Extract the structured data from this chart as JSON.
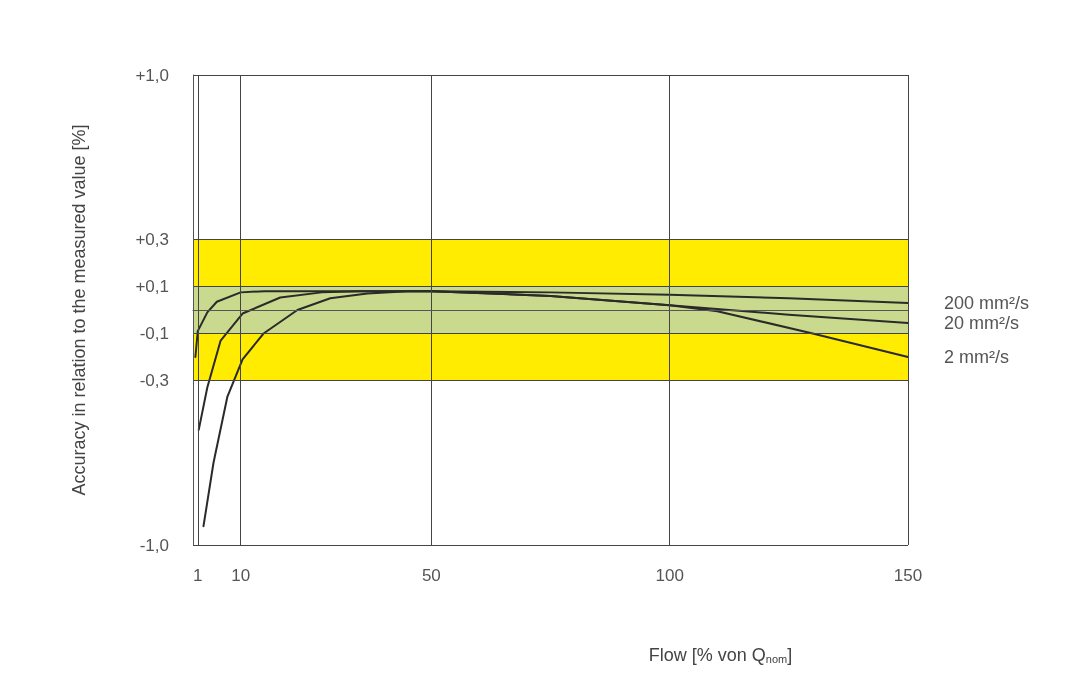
{
  "chart_data": {
    "type": "line",
    "xlabel": "Flow [% von Q$_{nom}$]",
    "ylabel": "Accuracy in relation to the measured value [%]",
    "xlim": [
      0,
      150
    ],
    "xticks": [
      1,
      10,
      50,
      100,
      150
    ],
    "ylim": [
      -1,
      1
    ],
    "yticks": [
      {
        "value": 1,
        "label": "+1,0"
      },
      {
        "value": 0.3,
        "label": "+0,3"
      },
      {
        "value": 0.1,
        "label": "+0,1"
      },
      {
        "value": 0,
        "label": null
      },
      {
        "value": -0.1,
        "label": "-0,1"
      },
      {
        "value": -0.3,
        "label": "-0,3"
      },
      {
        "value": -1,
        "label": "-1,0"
      }
    ],
    "grid": true,
    "legend": false,
    "marker": "none",
    "line_style": "solid",
    "bands": [
      {
        "axis": "y",
        "from": -0.3,
        "to": 0.3,
        "color": "#ffec00"
      },
      {
        "axis": "y",
        "from": -0.1,
        "to": 0.1,
        "color": "#c9d98e"
      }
    ],
    "series": [
      {
        "name": "200 mm²/s",
        "color": "#2a2a2a",
        "x": [
          2.2,
          4.3,
          7.2,
          10.4,
          14.8,
          21.9,
          28.8,
          36.6,
          45,
          50,
          75,
          100,
          125,
          150
        ],
        "values": [
          -0.92,
          -0.65,
          -0.37,
          -0.21,
          -0.1,
          0.0,
          0.05,
          0.07,
          0.08,
          0.08,
          0.075,
          0.065,
          0.05,
          0.03
        ]
      },
      {
        "name": "20 mm²/s",
        "color": "#2a2a2a",
        "x": [
          1.2,
          3,
          5.8,
          10.4,
          18.3,
          27,
          35,
          50,
          75,
          100,
          125,
          150
        ],
        "values": [
          -0.51,
          -0.33,
          -0.13,
          -0.015,
          0.053,
          0.075,
          0.08,
          0.08,
          0.06,
          0.02,
          -0.02,
          -0.055
        ]
      },
      {
        "name": "2 mm²/s",
        "color": "#2a2a2a",
        "x": [
          0.5,
          1,
          3,
          5,
          10,
          15,
          25,
          50,
          75,
          100,
          110,
          130,
          150
        ],
        "values": [
          -0.2,
          -0.09,
          -0.01,
          0.035,
          0.075,
          0.08,
          0.08,
          0.08,
          0.06,
          0.02,
          -0.005,
          -0.1,
          -0.2
        ]
      }
    ]
  }
}
